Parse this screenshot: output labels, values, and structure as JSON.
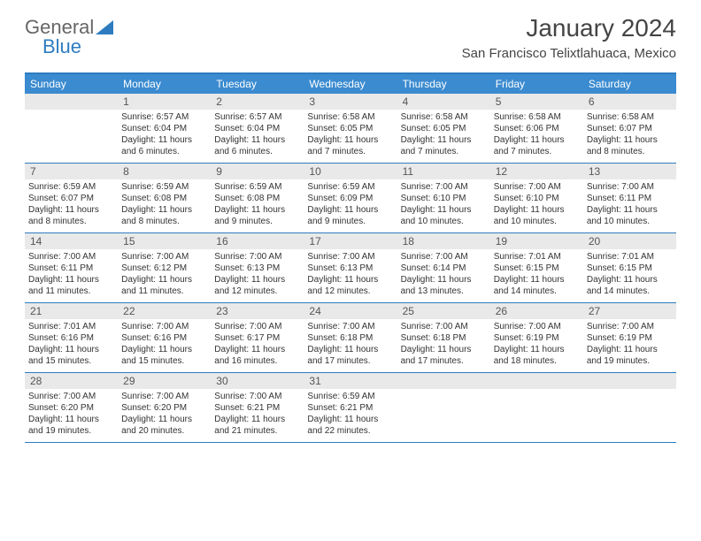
{
  "logo": {
    "part1": "General",
    "part2": "Blue"
  },
  "header": {
    "month": "January 2024",
    "location": "San Francisco Telixtlahuaca, Mexico"
  },
  "colors": {
    "accent": "#3b8bd0",
    "border": "#2e7cc0",
    "daynum_bg": "#e9e9e9"
  },
  "weekdays": [
    "Sunday",
    "Monday",
    "Tuesday",
    "Wednesday",
    "Thursday",
    "Friday",
    "Saturday"
  ],
  "weeks": [
    [
      null,
      {
        "n": "1",
        "sr": "6:57 AM",
        "ss": "6:04 PM",
        "dl": "11 hours and 6 minutes."
      },
      {
        "n": "2",
        "sr": "6:57 AM",
        "ss": "6:04 PM",
        "dl": "11 hours and 6 minutes."
      },
      {
        "n": "3",
        "sr": "6:58 AM",
        "ss": "6:05 PM",
        "dl": "11 hours and 7 minutes."
      },
      {
        "n": "4",
        "sr": "6:58 AM",
        "ss": "6:05 PM",
        "dl": "11 hours and 7 minutes."
      },
      {
        "n": "5",
        "sr": "6:58 AM",
        "ss": "6:06 PM",
        "dl": "11 hours and 7 minutes."
      },
      {
        "n": "6",
        "sr": "6:58 AM",
        "ss": "6:07 PM",
        "dl": "11 hours and 8 minutes."
      }
    ],
    [
      {
        "n": "7",
        "sr": "6:59 AM",
        "ss": "6:07 PM",
        "dl": "11 hours and 8 minutes."
      },
      {
        "n": "8",
        "sr": "6:59 AM",
        "ss": "6:08 PM",
        "dl": "11 hours and 8 minutes."
      },
      {
        "n": "9",
        "sr": "6:59 AM",
        "ss": "6:08 PM",
        "dl": "11 hours and 9 minutes."
      },
      {
        "n": "10",
        "sr": "6:59 AM",
        "ss": "6:09 PM",
        "dl": "11 hours and 9 minutes."
      },
      {
        "n": "11",
        "sr": "7:00 AM",
        "ss": "6:10 PM",
        "dl": "11 hours and 10 minutes."
      },
      {
        "n": "12",
        "sr": "7:00 AM",
        "ss": "6:10 PM",
        "dl": "11 hours and 10 minutes."
      },
      {
        "n": "13",
        "sr": "7:00 AM",
        "ss": "6:11 PM",
        "dl": "11 hours and 10 minutes."
      }
    ],
    [
      {
        "n": "14",
        "sr": "7:00 AM",
        "ss": "6:11 PM",
        "dl": "11 hours and 11 minutes."
      },
      {
        "n": "15",
        "sr": "7:00 AM",
        "ss": "6:12 PM",
        "dl": "11 hours and 11 minutes."
      },
      {
        "n": "16",
        "sr": "7:00 AM",
        "ss": "6:13 PM",
        "dl": "11 hours and 12 minutes."
      },
      {
        "n": "17",
        "sr": "7:00 AM",
        "ss": "6:13 PM",
        "dl": "11 hours and 12 minutes."
      },
      {
        "n": "18",
        "sr": "7:00 AM",
        "ss": "6:14 PM",
        "dl": "11 hours and 13 minutes."
      },
      {
        "n": "19",
        "sr": "7:01 AM",
        "ss": "6:15 PM",
        "dl": "11 hours and 14 minutes."
      },
      {
        "n": "20",
        "sr": "7:01 AM",
        "ss": "6:15 PM",
        "dl": "11 hours and 14 minutes."
      }
    ],
    [
      {
        "n": "21",
        "sr": "7:01 AM",
        "ss": "6:16 PM",
        "dl": "11 hours and 15 minutes."
      },
      {
        "n": "22",
        "sr": "7:00 AM",
        "ss": "6:16 PM",
        "dl": "11 hours and 15 minutes."
      },
      {
        "n": "23",
        "sr": "7:00 AM",
        "ss": "6:17 PM",
        "dl": "11 hours and 16 minutes."
      },
      {
        "n": "24",
        "sr": "7:00 AM",
        "ss": "6:18 PM",
        "dl": "11 hours and 17 minutes."
      },
      {
        "n": "25",
        "sr": "7:00 AM",
        "ss": "6:18 PM",
        "dl": "11 hours and 17 minutes."
      },
      {
        "n": "26",
        "sr": "7:00 AM",
        "ss": "6:19 PM",
        "dl": "11 hours and 18 minutes."
      },
      {
        "n": "27",
        "sr": "7:00 AM",
        "ss": "6:19 PM",
        "dl": "11 hours and 19 minutes."
      }
    ],
    [
      {
        "n": "28",
        "sr": "7:00 AM",
        "ss": "6:20 PM",
        "dl": "11 hours and 19 minutes."
      },
      {
        "n": "29",
        "sr": "7:00 AM",
        "ss": "6:20 PM",
        "dl": "11 hours and 20 minutes."
      },
      {
        "n": "30",
        "sr": "7:00 AM",
        "ss": "6:21 PM",
        "dl": "11 hours and 21 minutes."
      },
      {
        "n": "31",
        "sr": "6:59 AM",
        "ss": "6:21 PM",
        "dl": "11 hours and 22 minutes."
      },
      null,
      null,
      null
    ]
  ],
  "labels": {
    "sunrise": "Sunrise:",
    "sunset": "Sunset:",
    "daylight": "Daylight:"
  }
}
